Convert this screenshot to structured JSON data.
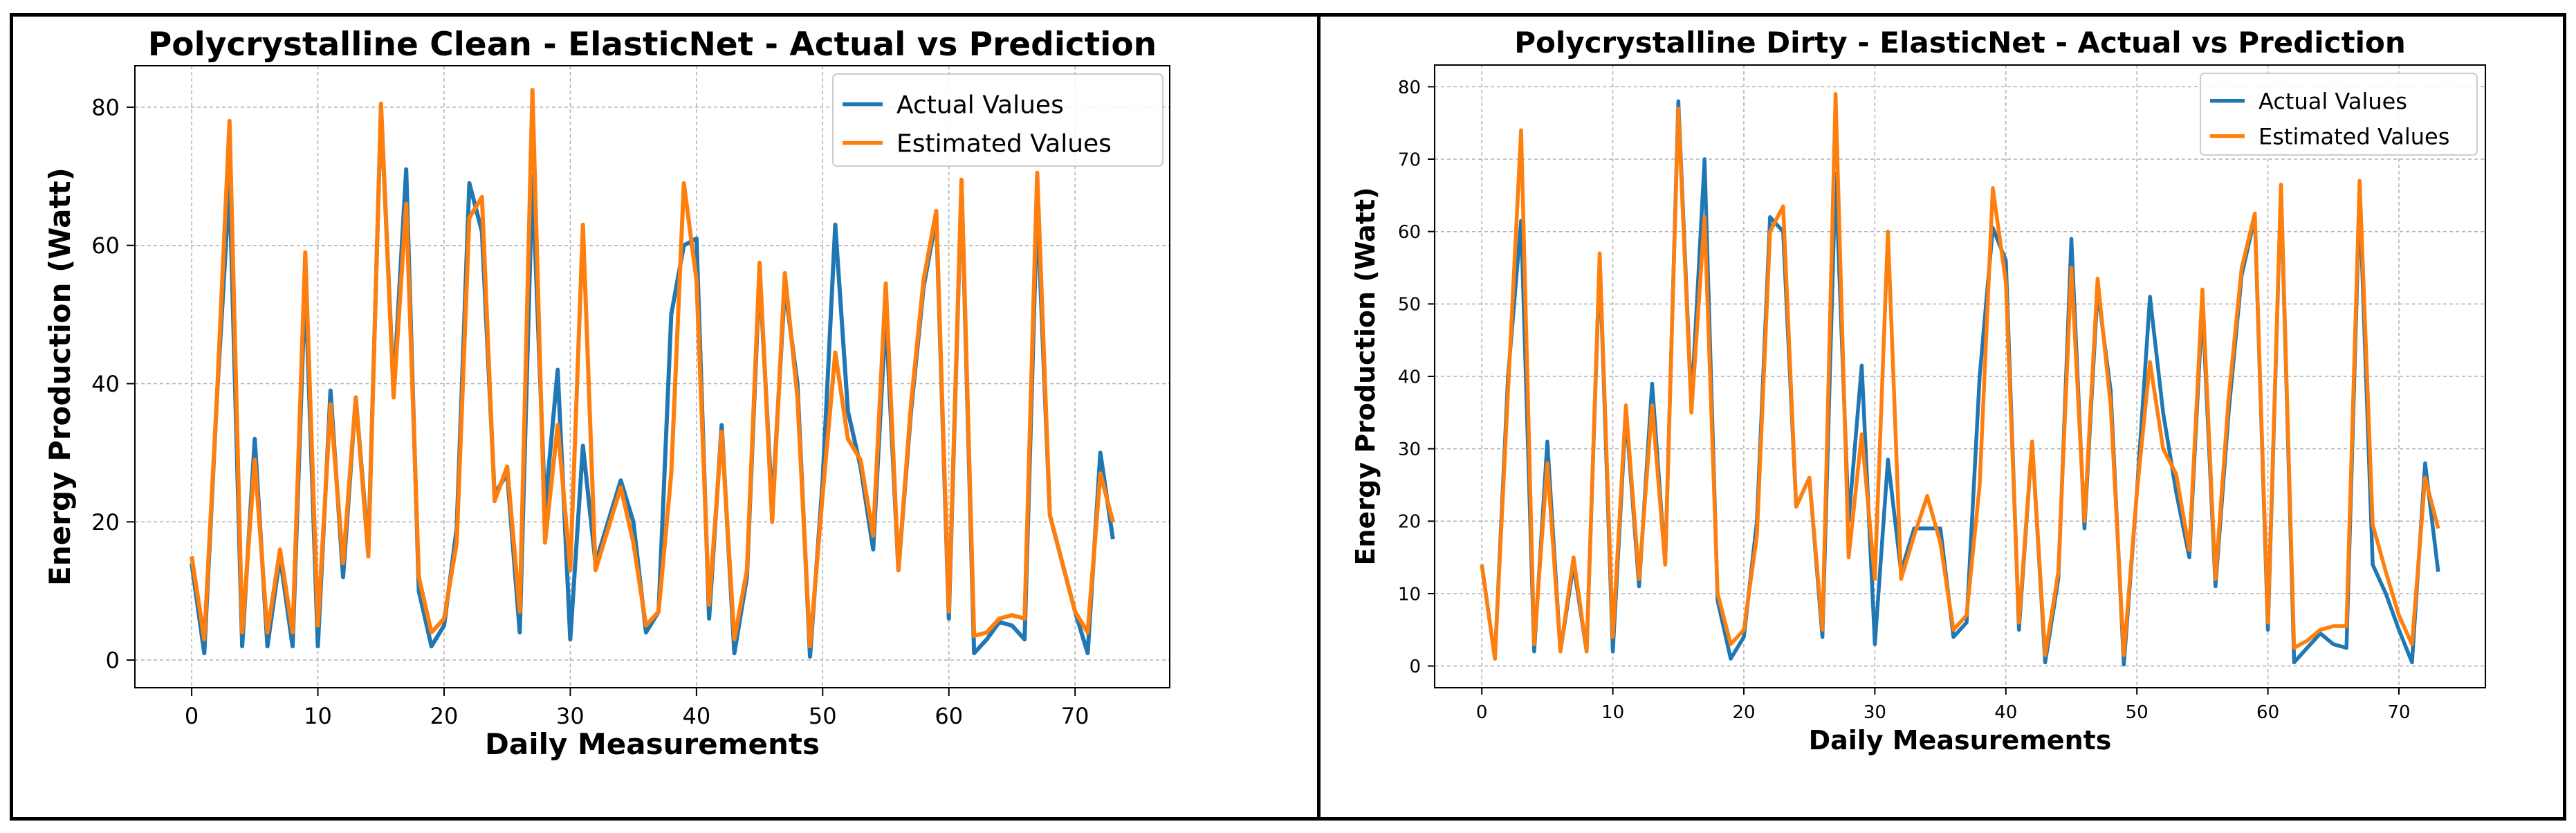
{
  "colors": {
    "actual": "#1f77b4",
    "estimated": "#ff7f0e",
    "grid": "#b0b0b0",
    "axis": "#000000"
  },
  "chart_data": [
    {
      "type": "line",
      "title": "Polycrystalline Clean - ElasticNet - Actual vs Prediction",
      "xlabel": "Daily Measurements",
      "ylabel": "Energy Production (Watt)",
      "xlim": [
        -4.5,
        77.5
      ],
      "ylim": [
        -4,
        86
      ],
      "xticks": [
        0,
        10,
        20,
        30,
        40,
        50,
        60,
        70
      ],
      "yticks": [
        0,
        20,
        40,
        60,
        80
      ],
      "grid": true,
      "legend": "top-right",
      "x": [
        0,
        1,
        2,
        3,
        4,
        5,
        6,
        7,
        8,
        9,
        10,
        11,
        12,
        13,
        14,
        15,
        16,
        17,
        18,
        19,
        20,
        21,
        22,
        23,
        24,
        25,
        26,
        27,
        28,
        29,
        30,
        31,
        32,
        33,
        34,
        35,
        36,
        37,
        38,
        39,
        40,
        41,
        42,
        43,
        44,
        45,
        46,
        47,
        48,
        49,
        50,
        51,
        52,
        53,
        54,
        55,
        56,
        57,
        58,
        59,
        60,
        61,
        62,
        63,
        64,
        65,
        66,
        67,
        68,
        69,
        70,
        71,
        72,
        73
      ],
      "series": [
        {
          "name": "Actual Values",
          "color": "#1f77b4",
          "values": [
            14,
            1,
            38,
            69,
            2,
            32,
            2,
            15,
            2,
            55,
            2,
            39,
            12,
            38,
            16,
            80,
            39,
            71,
            10,
            2,
            5,
            19,
            69,
            62,
            24,
            27,
            4,
            70,
            22,
            42,
            3,
            31,
            14,
            20,
            26,
            20,
            4,
            7,
            50,
            60,
            61,
            6,
            34,
            1,
            12,
            56,
            22,
            54,
            40,
            0.5,
            26,
            63,
            36,
            28,
            16,
            50,
            13,
            36,
            54,
            64,
            6,
            69,
            1,
            3,
            5.5,
            5,
            3,
            66,
            21,
            14,
            7,
            1,
            30,
            17.5
          ]
        },
        {
          "name": "Estimated Values",
          "color": "#ff7f0e",
          "values": [
            15,
            3,
            38,
            78,
            4,
            29,
            4,
            16,
            4,
            59,
            5,
            37,
            14,
            38,
            15,
            80.5,
            38,
            66,
            12,
            4,
            6,
            17,
            64,
            67,
            23,
            28,
            7,
            82.5,
            17,
            34,
            13,
            63,
            13,
            19,
            25,
            17,
            5,
            7,
            27,
            69,
            55,
            8,
            33,
            3,
            13,
            57.5,
            20,
            56,
            38,
            2,
            24,
            44.5,
            32,
            29,
            18,
            54.5,
            13,
            37,
            55,
            65,
            7,
            69.5,
            3.5,
            4,
            6,
            6.5,
            6,
            70.5,
            21,
            14,
            7,
            4,
            27,
            20
          ]
        }
      ]
    },
    {
      "type": "line",
      "title": "Polycrystalline Dirty - ElasticNet - Actual vs Prediction",
      "xlabel": "Daily Measurements",
      "ylabel": "Energy Production (Watt)",
      "xlim": [
        -3.6,
        76.6
      ],
      "ylim": [
        -3,
        83
      ],
      "xticks": [
        0,
        10,
        20,
        30,
        40,
        50,
        60,
        70
      ],
      "yticks": [
        0,
        10,
        20,
        30,
        40,
        50,
        60,
        70,
        80
      ],
      "grid": true,
      "legend": "top-right",
      "x": [
        0,
        1,
        2,
        3,
        4,
        5,
        6,
        7,
        8,
        9,
        10,
        11,
        12,
        13,
        14,
        15,
        16,
        17,
        18,
        19,
        20,
        21,
        22,
        23,
        24,
        25,
        26,
        27,
        28,
        29,
        30,
        31,
        32,
        33,
        34,
        35,
        36,
        37,
        38,
        39,
        40,
        41,
        42,
        43,
        44,
        45,
        46,
        47,
        48,
        49,
        50,
        51,
        52,
        53,
        54,
        55,
        56,
        57,
        58,
        59,
        60,
        61,
        62,
        63,
        64,
        65,
        66,
        67,
        68,
        69,
        70,
        71,
        72,
        73
      ],
      "series": [
        {
          "name": "Actual Values",
          "color": "#1f77b4",
          "values": [
            14,
            1,
            40,
            61.5,
            2,
            31,
            2,
            14,
            2,
            56,
            2,
            35,
            11,
            39,
            14,
            78,
            36,
            70,
            9,
            1,
            4,
            20,
            62,
            60,
            22,
            26,
            4,
            68,
            20,
            41.5,
            3,
            28.5,
            13,
            19,
            19,
            19,
            4,
            6,
            40,
            60.5,
            56,
            5,
            31,
            0.5,
            12,
            59,
            19,
            52,
            38,
            0.2,
            24,
            51,
            35,
            24,
            15,
            50,
            11,
            35,
            54,
            62,
            5,
            66,
            0.5,
            2.5,
            4.5,
            3,
            2.5,
            65,
            14,
            10,
            5,
            0.5,
            28,
            13
          ]
        },
        {
          "name": "Estimated Values",
          "color": "#ff7f0e",
          "values": [
            14,
            1,
            38,
            74,
            3,
            28,
            2,
            15,
            2,
            57,
            4,
            36,
            12,
            36,
            14,
            77,
            35,
            62,
            10,
            3,
            5,
            18,
            60,
            63.5,
            22,
            26,
            5,
            79,
            15,
            32,
            12,
            60,
            12,
            18,
            23.5,
            17,
            5,
            7,
            25,
            66,
            53,
            6,
            31,
            1.5,
            13,
            55,
            20,
            53.5,
            36,
            1.5,
            24,
            42,
            30,
            26.5,
            16,
            52,
            12,
            37,
            55,
            62.5,
            6,
            66.5,
            2.5,
            3.5,
            5,
            5.5,
            5.5,
            67,
            19.5,
            13,
            7,
            3,
            26,
            19
          ]
        }
      ]
    }
  ]
}
